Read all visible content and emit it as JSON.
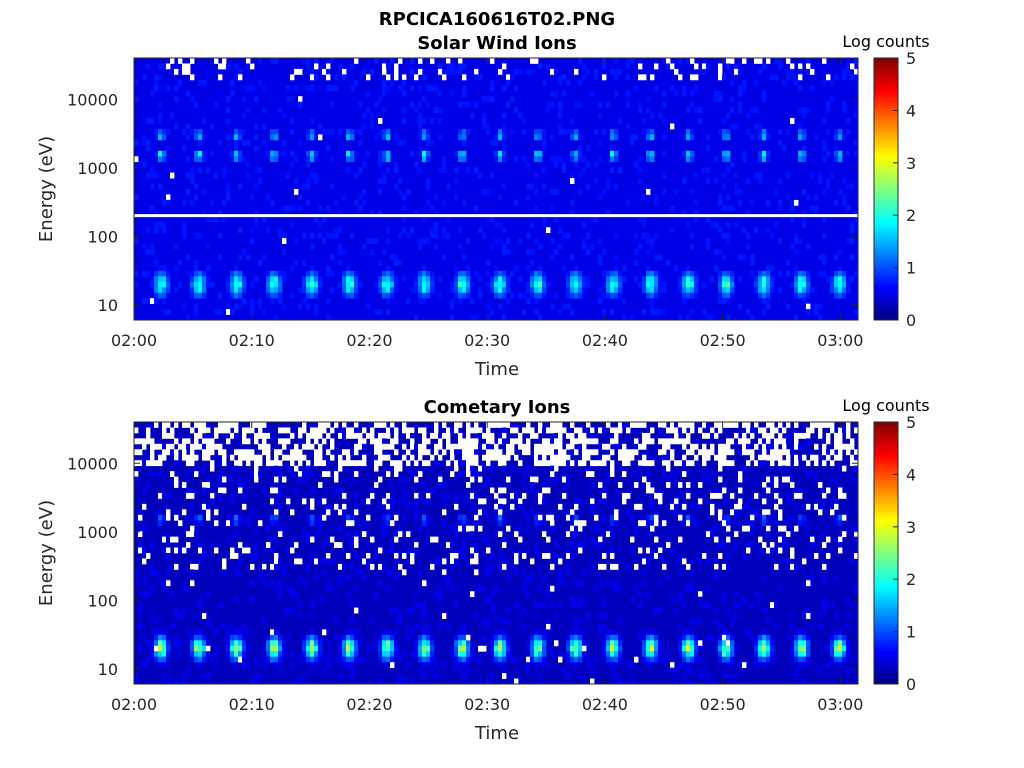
{
  "figure_title": "RPCICA160616T02.PNG",
  "chart_data": [
    {
      "type": "heatmap",
      "title": "Solar Wind Ions",
      "xlabel": "Time",
      "ylabel": "Energy (eV)",
      "x_ticks": [
        "02:00",
        "02:10",
        "02:20",
        "02:30",
        "02:40",
        "02:50",
        "03:00"
      ],
      "xlim_minutes": [
        0,
        61.5
      ],
      "y_ticks": [
        {
          "value": 10,
          "label": "10"
        },
        {
          "value": 100,
          "label": "100"
        },
        {
          "value": 1000,
          "label": "1000"
        },
        {
          "value": 10000,
          "label": "10000"
        }
      ],
      "ylim": [
        6,
        40000
      ],
      "y_scale": "log",
      "colorbar": {
        "label": "Log counts",
        "ticks": [
          "0",
          "1",
          "2",
          "3",
          "4",
          "5"
        ],
        "range": [
          0,
          5
        ],
        "colormap": "jet"
      },
      "background_log_counts": 0.5,
      "scan_period_minutes": 3.2,
      "first_scan_minute": 2.3,
      "features": [
        {
          "name": "solar wind peak",
          "energy_eV": 3000,
          "log_counts": 1.8
        },
        {
          "name": "solar wind peak",
          "energy_eV": 1500,
          "log_counts": 2.2
        },
        {
          "name": "low energy band",
          "energy_eV": 20,
          "log_counts": 2.1
        }
      ],
      "reference_line_eV": 200
    },
    {
      "type": "heatmap",
      "title": "Cometary Ions",
      "xlabel": "Time",
      "ylabel": "Energy (eV)",
      "x_ticks": [
        "02:00",
        "02:10",
        "02:20",
        "02:30",
        "02:40",
        "02:50",
        "03:00"
      ],
      "xlim_minutes": [
        0,
        61.5
      ],
      "y_ticks": [
        {
          "value": 10,
          "label": "10"
        },
        {
          "value": 100,
          "label": "100"
        },
        {
          "value": 1000,
          "label": "1000"
        },
        {
          "value": 10000,
          "label": "10000"
        }
      ],
      "ylim": [
        6,
        40000
      ],
      "y_scale": "log",
      "colorbar": {
        "label": "Log counts",
        "ticks": [
          "0",
          "1",
          "2",
          "3",
          "4",
          "5"
        ],
        "range": [
          0,
          5
        ],
        "colormap": "jet"
      },
      "background_log_counts": 0.3,
      "scan_period_minutes": 3.2,
      "first_scan_minute": 2.3,
      "features": [
        {
          "name": "cometary ion peak",
          "energy_eV": 1500,
          "log_counts": 1.3
        },
        {
          "name": "low energy band",
          "energy_eV": 20,
          "log_counts": 2.6
        }
      ]
    }
  ]
}
